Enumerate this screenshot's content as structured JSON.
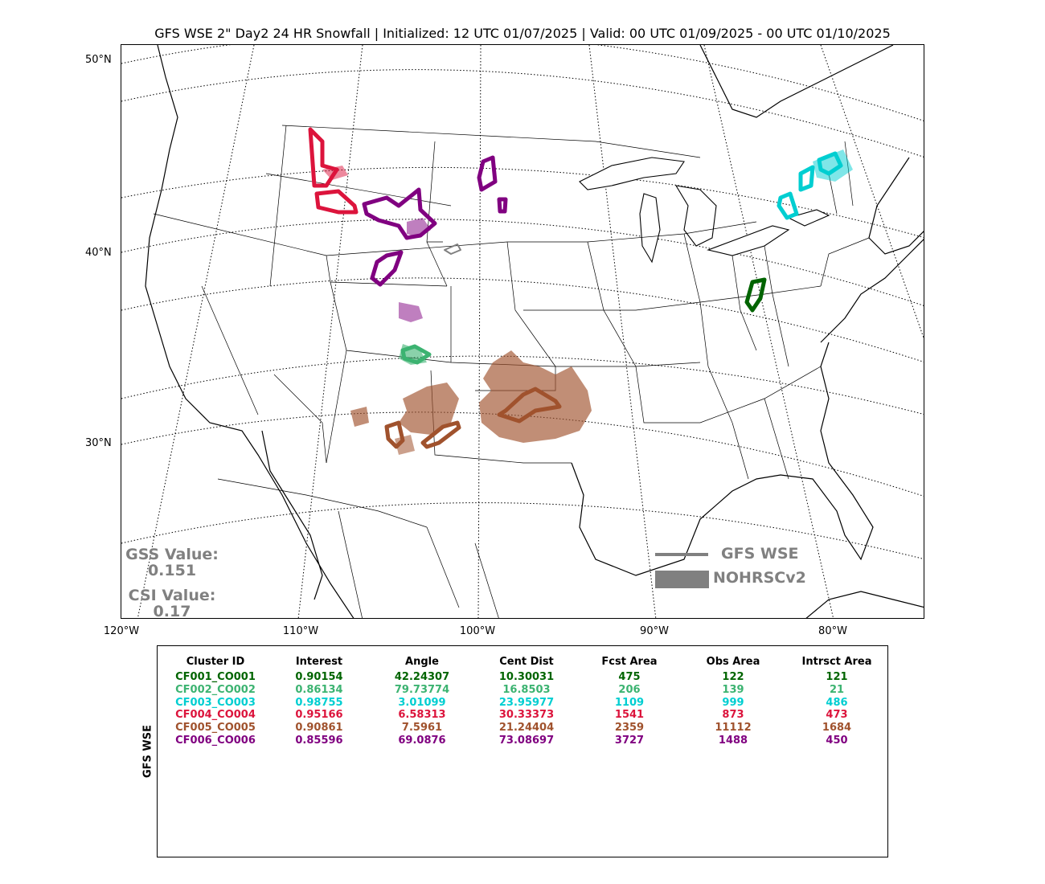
{
  "title": "GFS WSE 2\" Day2 24 HR Snowfall | Initialized: 12 UTC 01/07/2025 | Valid: 00 UTC 01/09/2025 - 00 UTC 01/10/2025",
  "map": {
    "lat_labels": [
      "50°N",
      "40°N",
      "30°N"
    ],
    "lon_labels": [
      "120°W",
      "110°W",
      "100°W",
      "90°W",
      "80°W"
    ],
    "gss_label": "GSS Value:",
    "gss_value": "0.151",
    "csi_label": "CSI Value:",
    "csi_value": "0.17",
    "legend": {
      "fcst_label": "GFS WSE",
      "obs_label": "NOHRSCv2",
      "color": "#808080"
    }
  },
  "table": {
    "row_label": "GFS WSE",
    "headers": [
      "Cluster ID",
      "Interest",
      "Angle",
      "Cent Dist",
      "Fcst Area",
      "Obs Area",
      "Intrsct Area"
    ],
    "rows": [
      {
        "color": "#006400",
        "cells": [
          "CF001_CO001",
          "0.90154",
          "42.24307",
          "10.30031",
          "475",
          "122",
          "121"
        ]
      },
      {
        "color": "#3cb371",
        "cells": [
          "CF002_CO002",
          "0.86134",
          "79.73774",
          "16.8503",
          "206",
          "139",
          "21"
        ]
      },
      {
        "color": "#00ced1",
        "cells": [
          "CF003_CO003",
          "0.98755",
          "3.01099",
          "23.95977",
          "1109",
          "999",
          "486"
        ]
      },
      {
        "color": "#dc143c",
        "cells": [
          "CF004_CO004",
          "0.95166",
          "6.58313",
          "30.33373",
          "1541",
          "873",
          "473"
        ]
      },
      {
        "color": "#a0522d",
        "cells": [
          "CF005_CO005",
          "0.90861",
          "7.5961",
          "21.24404",
          "2359",
          "11112",
          "1684"
        ]
      },
      {
        "color": "#800080",
        "cells": [
          "CF006_CO006",
          "0.85596",
          "69.0876",
          "73.08697",
          "3727",
          "1488",
          "450"
        ]
      }
    ]
  }
}
